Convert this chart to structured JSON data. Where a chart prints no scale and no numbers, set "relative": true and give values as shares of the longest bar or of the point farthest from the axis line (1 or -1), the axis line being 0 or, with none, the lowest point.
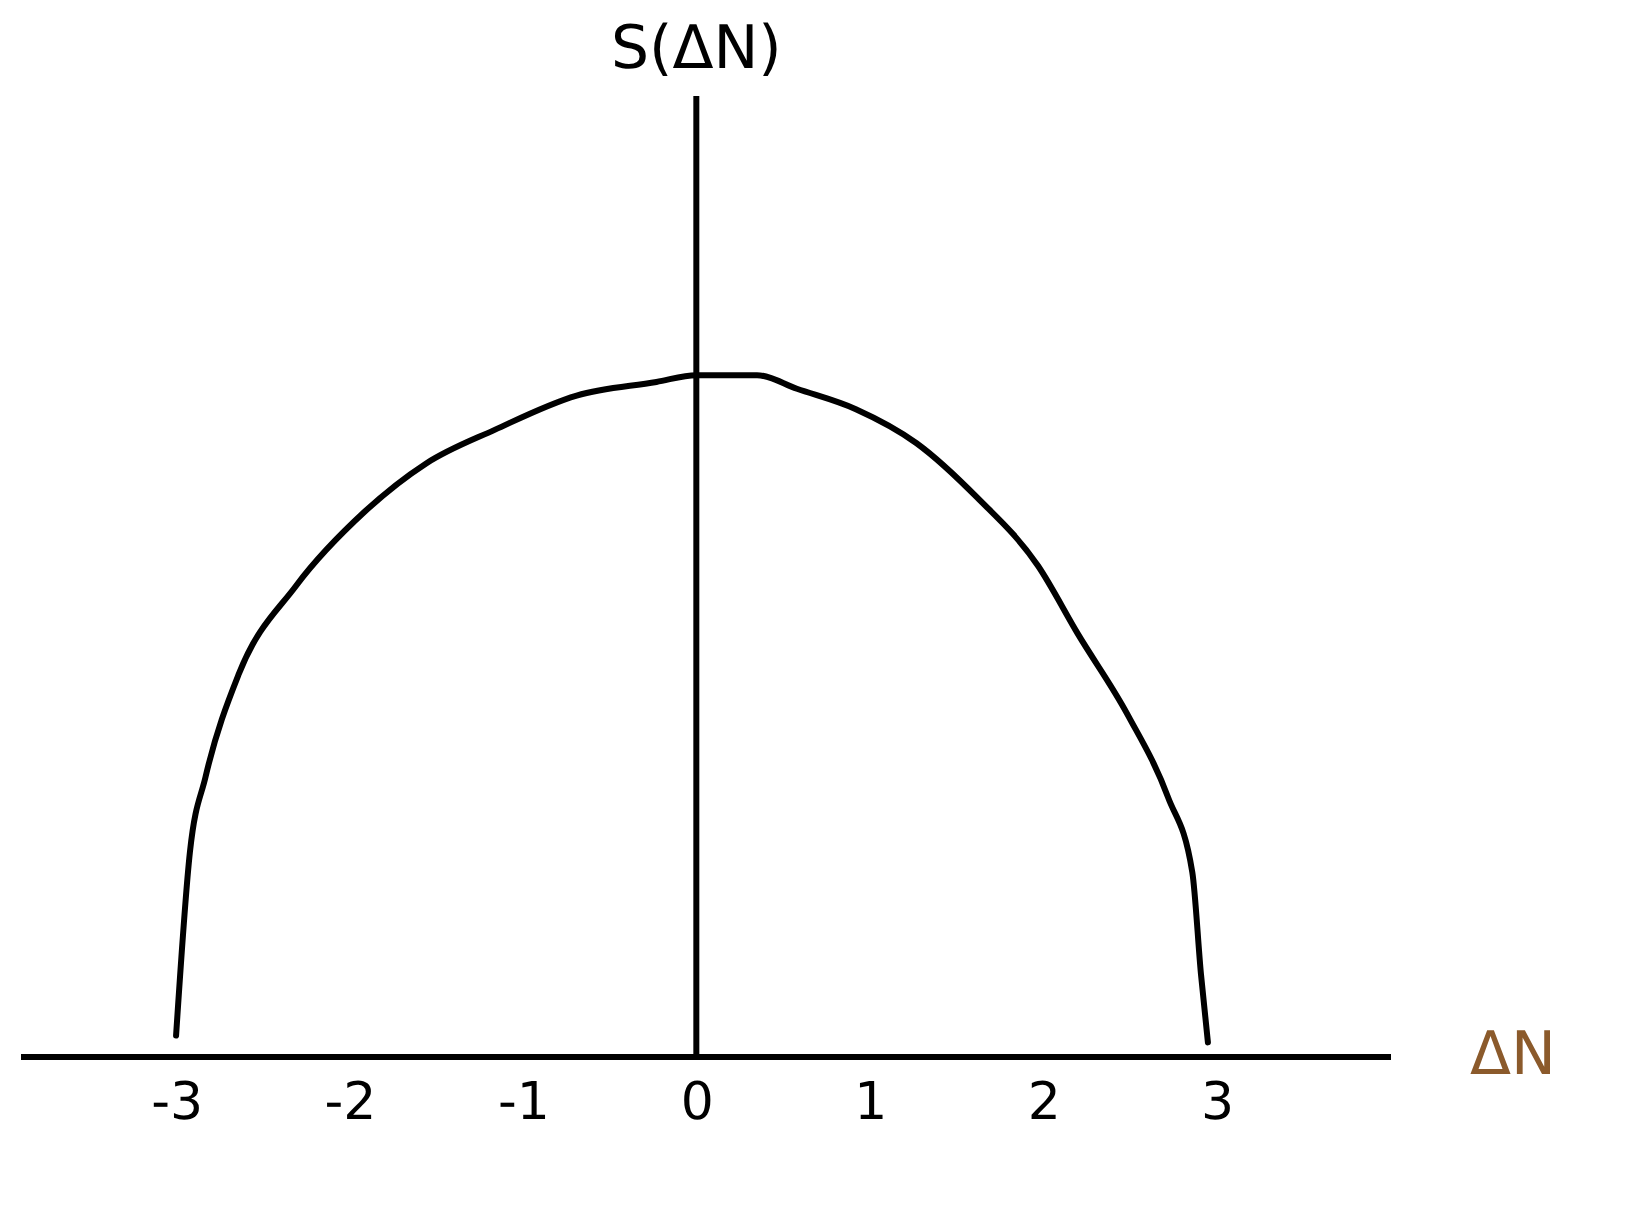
{
  "chart_data": {
    "type": "line",
    "xlabel": "ΔN",
    "ylabel": "S(ΔN)",
    "relative": true,
    "xlim": [
      -3.9,
      4
    ],
    "xticks": [
      -3,
      -2,
      -1,
      0,
      1,
      2,
      3
    ],
    "series": [
      {
        "color": "#000000",
        "x": [
          -3.0,
          -2.92,
          -2.83,
          -2.64,
          -2.31,
          -1.91,
          -1.56,
          -1.16,
          -0.69,
          -0.23,
          0,
          0.35,
          0.58,
          0.92,
          1.27,
          1.62,
          1.97,
          2.2,
          2.49,
          2.72,
          2.86,
          2.91,
          2.95
        ],
        "values": [
          0.03,
          0.3,
          0.41,
          0.56,
          0.69,
          0.8,
          0.87,
          0.92,
          0.97,
          0.99,
          1.0,
          1.0,
          0.98,
          0.95,
          0.9,
          0.82,
          0.72,
          0.62,
          0.5,
          0.38,
          0.27,
          0.12,
          0.02
        ]
      }
    ]
  }
}
